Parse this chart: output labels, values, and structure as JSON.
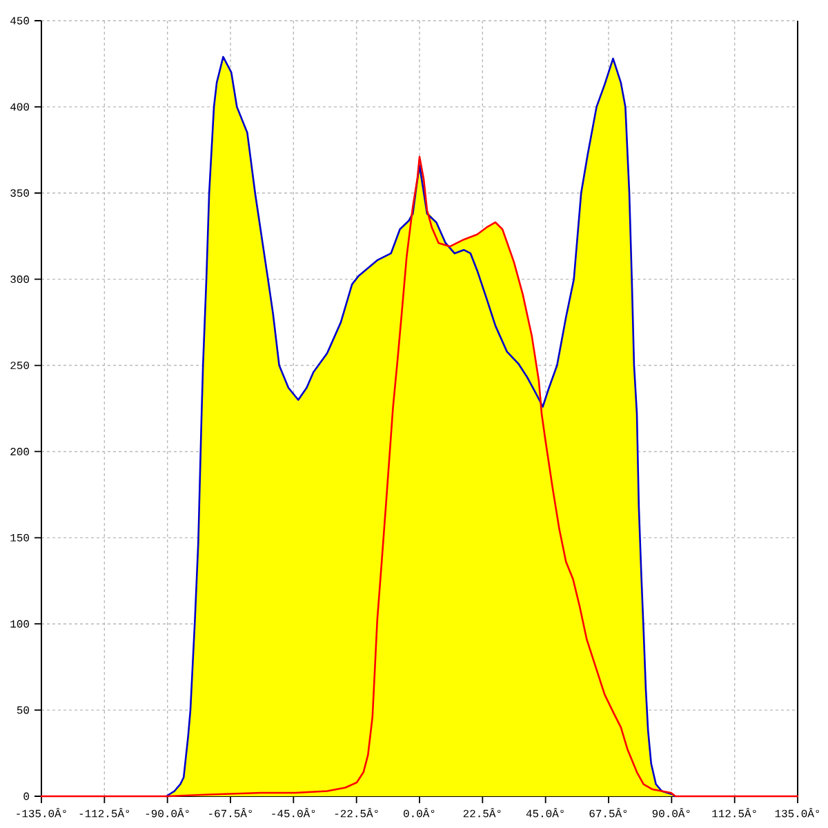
{
  "chart_data": {
    "type": "line",
    "xlim": [
      -135,
      135
    ],
    "ylim": [
      0,
      450
    ],
    "xticks": [
      {
        "value": -135,
        "label": "-135.0Â°"
      },
      {
        "value": -112.5,
        "label": "-112.5Â°"
      },
      {
        "value": -90,
        "label": "-90.0Â°"
      },
      {
        "value": -67.5,
        "label": "-67.5Â°"
      },
      {
        "value": -45,
        "label": "-45.0Â°"
      },
      {
        "value": -22.5,
        "label": "-22.5Â°"
      },
      {
        "value": 0,
        "label": "0.0Â°"
      },
      {
        "value": 22.5,
        "label": "22.5Â°"
      },
      {
        "value": 45,
        "label": "45.0Â°"
      },
      {
        "value": 67.5,
        "label": "67.5Â°"
      },
      {
        "value": 90,
        "label": "90.0Â°"
      },
      {
        "value": 112.5,
        "label": "112.5Â°"
      },
      {
        "value": 135,
        "label": "135.0Â°"
      }
    ],
    "yticks": [
      0,
      50,
      100,
      150,
      200,
      250,
      300,
      350,
      400,
      450
    ],
    "grid": true,
    "series": [
      {
        "type": "area",
        "color": "#ffff00",
        "x": [
          -135,
          -90.4,
          -87.5,
          -85.4,
          -84.2,
          -82.6,
          -81.8,
          -80.2,
          -79,
          -77.8,
          -77.3,
          -76.1,
          -75.1,
          -73.4,
          -72.4,
          -70.1,
          -67.2,
          -65.2,
          -61.5,
          -58.7,
          -56.4,
          -54.1,
          -52.3,
          -50.1,
          -46.8,
          -43.3,
          -40.3,
          -37.9,
          -33,
          -28.1,
          -24.1,
          -21.7,
          -15.1,
          -10.2,
          -7,
          -3.8,
          -2.4,
          -0.8,
          0,
          1.5,
          2.7,
          6,
          9.3,
          10.9,
          15.8,
          20.6,
          23.9,
          27.1,
          29.6,
          33.7,
          36.9,
          40.1,
          42.6,
          44,
          46,
          49.1,
          52.3,
          55.1,
          57.7,
          60,
          63.2,
          66.1,
          69.1,
          71.9,
          73.5,
          74.9,
          75.8,
          76.6,
          77.6,
          78.3,
          79.2,
          80,
          80.8,
          81.6,
          82.7,
          84.4,
          86.5,
          89.8,
          91.4,
          135
        ],
        "values": [
          0,
          0,
          3,
          7,
          11,
          35,
          50,
          102,
          147,
          222,
          250,
          300,
          350,
          400,
          414,
          429,
          420,
          400,
          385,
          350,
          325,
          300,
          280,
          250,
          237,
          230,
          237,
          246,
          257,
          275,
          297,
          302,
          311,
          315,
          329,
          334,
          342,
          358,
          371,
          358,
          340,
          333,
          321,
          319,
          323,
          326,
          330,
          333,
          329,
          310,
          291,
          267,
          241,
          226,
          236,
          250,
          278,
          300,
          350,
          372,
          400,
          413,
          428,
          414,
          400,
          350,
          300,
          250,
          222,
          168,
          128,
          96,
          62,
          38,
          19,
          7,
          3,
          2,
          0,
          0
        ]
      },
      {
        "color": "#0000cc",
        "x": [
          -90.4,
          -87.5,
          -85.4,
          -84.2,
          -82.6,
          -81.8,
          -80.2,
          -79,
          -77.8,
          -77.3,
          -76.1,
          -75.1,
          -73.4,
          -72.4,
          -70.1,
          -67.2,
          -65.2,
          -61.5,
          -58.7,
          -56.4,
          -54.1,
          -52.3,
          -50.1,
          -46.8,
          -43.3,
          -40.3,
          -37.9,
          -33,
          -28.1,
          -24.1,
          -21.7,
          -15.1,
          -10.2,
          -7,
          -3.8,
          -2.4,
          -1,
          0,
          2.7,
          6,
          9.3,
          12.5,
          15.8,
          18.2,
          20.6,
          23.9,
          27.1,
          31.2,
          35.3,
          38.5,
          41.8,
          44,
          46,
          49.1,
          52.3,
          55.1,
          57.7,
          60,
          63.2,
          66.1,
          69.1,
          71.9,
          73.5,
          74.9,
          75.8,
          76.6,
          77.6,
          78.3,
          79.2,
          80,
          80.8,
          81.6,
          82.7,
          84.4,
          86.5,
          90.5,
          91
        ],
        "values": [
          0,
          3,
          7,
          11,
          35,
          50,
          102,
          147,
          222,
          250,
          300,
          350,
          400,
          414,
          429,
          420,
          400,
          385,
          350,
          325,
          300,
          280,
          250,
          237,
          230,
          237,
          246,
          257,
          275,
          297,
          302,
          311,
          315,
          329,
          334,
          338,
          355,
          366,
          338,
          333,
          321,
          315,
          317,
          315,
          305,
          289,
          273,
          258,
          251,
          243,
          233,
          226,
          236,
          250,
          278,
          300,
          350,
          372,
          400,
          413,
          428,
          414,
          400,
          350,
          300,
          250,
          222,
          168,
          128,
          96,
          62,
          38,
          19,
          7,
          3,
          1,
          0
        ]
      },
      {
        "color": "#ff0000",
        "x": [
          -135,
          -90,
          -75,
          -56.6,
          -44.4,
          -33,
          -26.5,
          -22.4,
          -20,
          -18.4,
          -16.8,
          -16,
          -15.1,
          -13.5,
          -11.9,
          -10.2,
          -9.5,
          -7.8,
          -6.2,
          -4.6,
          -2.4,
          -0.8,
          0,
          1.5,
          2.7,
          4.4,
          6.8,
          10.9,
          15.8,
          20.6,
          23.9,
          27.1,
          29.6,
          33.7,
          36.9,
          40.1,
          42.6,
          43.6,
          45,
          47.5,
          49.9,
          52.3,
          54.8,
          57.2,
          59.7,
          62.9,
          66.1,
          69.4,
          71.9,
          74.3,
          77.6,
          80,
          83.2,
          89.8,
          91.4,
          135
        ],
        "values": [
          0,
          0,
          1,
          2,
          2,
          3,
          5,
          8,
          14,
          24,
          46,
          72,
          102,
          136,
          171,
          209,
          225,
          254,
          283,
          313,
          342,
          358,
          371,
          358,
          340,
          330,
          321,
          319,
          323,
          326,
          330,
          333,
          329,
          310,
          291,
          267,
          241,
          222,
          206,
          179,
          155,
          136,
          126,
          110,
          91,
          75,
          59,
          48,
          40,
          27,
          14,
          7,
          4,
          2,
          0,
          0
        ]
      }
    ]
  }
}
